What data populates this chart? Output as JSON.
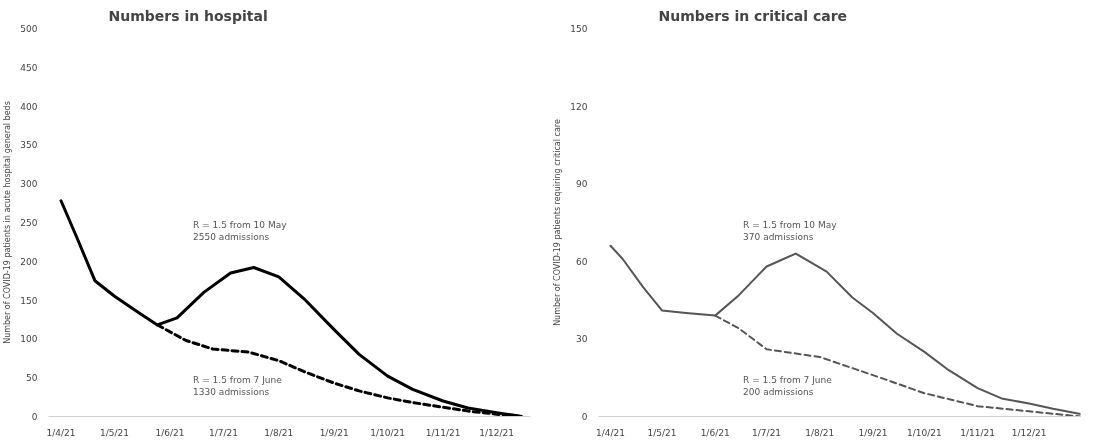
{
  "chart_data": [
    {
      "type": "line",
      "title": "Numbers in hospital",
      "ylabel": "Number of COVID-19 patients in acute hospital general beds",
      "xlim": [
        "2021-03-25",
        "2021-12-20"
      ],
      "ylim": [
        0,
        500
      ],
      "yticks": [
        0,
        50,
        100,
        150,
        200,
        250,
        300,
        350,
        400,
        450,
        500
      ],
      "xticks": [
        {
          "value": "2021-04-01",
          "label": "1/4/21"
        },
        {
          "value": "2021-05-01",
          "label": "1/5/21"
        },
        {
          "value": "2021-06-01",
          "label": "1/6/21"
        },
        {
          "value": "2021-07-01",
          "label": "1/7/21"
        },
        {
          "value": "2021-08-01",
          "label": "1/8/21"
        },
        {
          "value": "2021-09-01",
          "label": "1/9/21"
        },
        {
          "value": "2021-10-01",
          "label": "1/10/21"
        },
        {
          "value": "2021-11-01",
          "label": "1/11/21"
        },
        {
          "value": "2021-12-01",
          "label": "1/12/21"
        }
      ],
      "grid": false,
      "series": [
        {
          "color": "#000000",
          "line_style": "solid",
          "x": [
            "2021-04-01",
            "2021-04-10",
            "2021-04-20",
            "2021-05-01",
            "2021-05-15",
            "2021-05-25",
            "2021-06-05",
            "2021-06-20",
            "2021-07-05",
            "2021-07-18",
            "2021-08-01",
            "2021-08-15",
            "2021-09-01",
            "2021-09-15",
            "2021-10-01",
            "2021-10-15",
            "2021-11-01",
            "2021-11-15",
            "2021-12-01",
            "2021-12-15"
          ],
          "values": [
            278,
            230,
            175,
            155,
            133,
            118,
            127,
            160,
            185,
            192,
            180,
            152,
            112,
            80,
            52,
            35,
            20,
            11,
            5,
            0
          ]
        },
        {
          "color": "#000000",
          "line_style": "dashed",
          "x": [
            "2021-05-25",
            "2021-06-10",
            "2021-06-25",
            "2021-07-15",
            "2021-08-01",
            "2021-08-15",
            "2021-09-01",
            "2021-09-15",
            "2021-10-01",
            "2021-10-15",
            "2021-11-01",
            "2021-11-15",
            "2021-12-01",
            "2021-12-15"
          ],
          "values": [
            118,
            98,
            87,
            83,
            72,
            58,
            43,
            33,
            24,
            18,
            12,
            7,
            3,
            0
          ]
        }
      ],
      "annotations": [
        "R = 1.5 from 10 May\n2550 admissions",
        "R = 1.5 from 7 June\n1330 admissions"
      ]
    },
    {
      "type": "line",
      "title": "Numbers in critical care",
      "ylabel": "Number of COVID-19 patients requiring critical care",
      "xlim": [
        "2021-03-25",
        "2021-12-31"
      ],
      "ylim": [
        0,
        150
      ],
      "yticks": [
        0,
        30,
        60,
        90,
        120,
        150
      ],
      "xticks": [
        {
          "value": "2021-04-01",
          "label": "1/4/21"
        },
        {
          "value": "2021-05-01",
          "label": "1/5/21"
        },
        {
          "value": "2021-06-01",
          "label": "1/6/21"
        },
        {
          "value": "2021-07-01",
          "label": "1/7/21"
        },
        {
          "value": "2021-08-01",
          "label": "1/8/21"
        },
        {
          "value": "2021-09-01",
          "label": "1/9/21"
        },
        {
          "value": "2021-10-01",
          "label": "1/10/21"
        },
        {
          "value": "2021-11-01",
          "label": "1/11/21"
        },
        {
          "value": "2021-12-01",
          "label": "1/12/21"
        }
      ],
      "grid": false,
      "series": [
        {
          "color": "#555555",
          "line_style": "solid",
          "x": [
            "2021-04-01",
            "2021-04-08",
            "2021-04-20",
            "2021-05-01",
            "2021-05-15",
            "2021-06-01",
            "2021-06-15",
            "2021-07-01",
            "2021-07-18",
            "2021-08-05",
            "2021-08-20",
            "2021-09-01",
            "2021-09-15",
            "2021-10-01",
            "2021-10-15",
            "2021-11-01",
            "2021-11-15",
            "2021-12-01",
            "2021-12-15",
            "2021-12-31"
          ],
          "values": [
            66,
            61,
            50,
            41,
            40,
            39,
            47,
            58,
            63,
            56,
            46,
            40,
            32,
            25,
            18,
            11,
            7,
            5,
            3,
            1
          ]
        },
        {
          "color": "#555555",
          "line_style": "dashed",
          "x": [
            "2021-06-01",
            "2021-06-15",
            "2021-07-01",
            "2021-08-01",
            "2021-09-01",
            "2021-10-01",
            "2021-11-01",
            "2021-12-01",
            "2021-12-31"
          ],
          "values": [
            39,
            34,
            26,
            23,
            16,
            9,
            4,
            2,
            0
          ]
        }
      ],
      "annotations": [
        "R = 1.5 from 10 May\n370 admissions",
        "R = 1.5 from 7 June\n200 admissions"
      ]
    }
  ]
}
